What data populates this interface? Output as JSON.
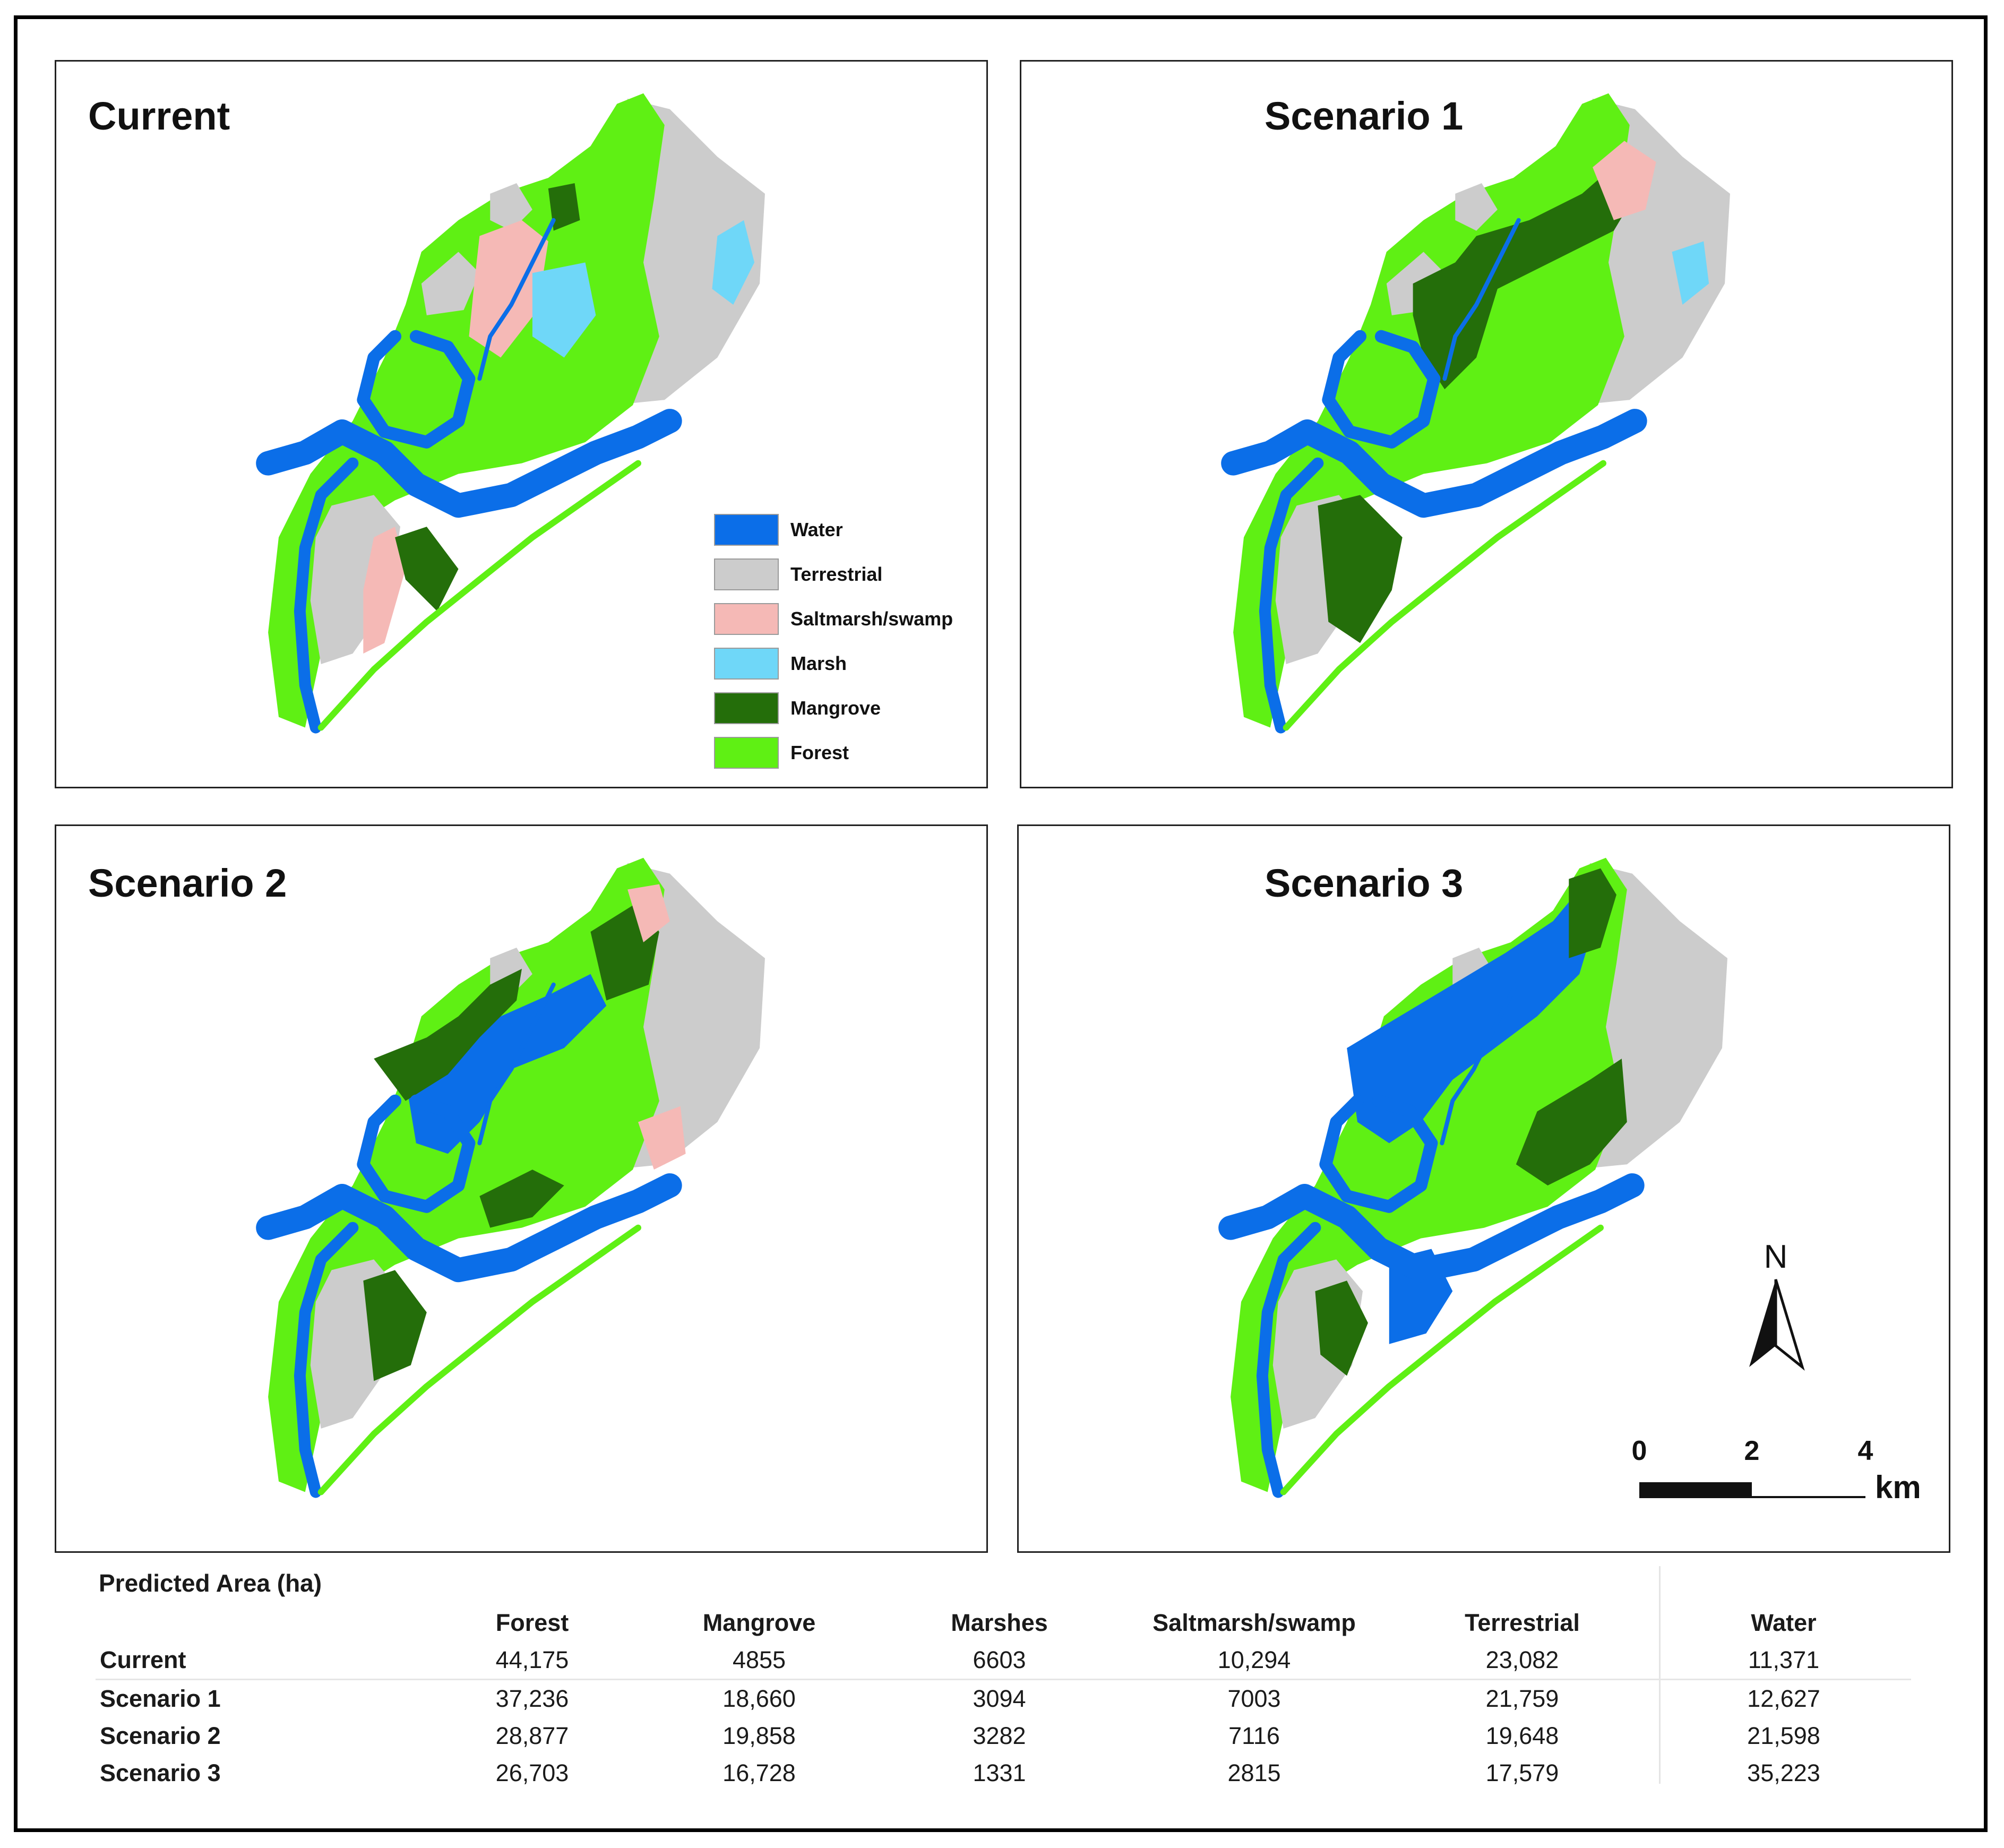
{
  "panels": [
    {
      "id": "current",
      "title": "Current",
      "scenario": 0
    },
    {
      "id": "scenario1",
      "title": "Scenario 1",
      "scenario": 1
    },
    {
      "id": "scenario2",
      "title": "Scenario 2",
      "scenario": 2
    },
    {
      "id": "scenario3",
      "title": "Scenario 3",
      "scenario": 3
    }
  ],
  "legend": {
    "items": [
      {
        "label": "Water",
        "color": "#0b6ee8"
      },
      {
        "label": "Terrestrial",
        "color": "#cccccc"
      },
      {
        "label": "Saltmarsh/swamp",
        "color": "#f5b9b6"
      },
      {
        "label": "Marsh",
        "color": "#6fd7f8"
      },
      {
        "label": "Mangrove",
        "color": "#246e0a"
      },
      {
        "label": "Forest",
        "color": "#5ff014"
      }
    ]
  },
  "north_arrow": {
    "label": "N"
  },
  "scale_bar": {
    "ticks": [
      "0",
      "2",
      "4"
    ],
    "unit": "km"
  },
  "table": {
    "title": "Predicted Area (ha)",
    "columns": [
      "Forest",
      "Mangrove",
      "Marshes",
      "Saltmarsh/swamp",
      "Terrestrial",
      "Water"
    ],
    "rows": [
      {
        "label": "Current",
        "values": [
          "44,175",
          "4855",
          "6603",
          "10,294",
          "23,082",
          "11,371"
        ]
      },
      {
        "label": "Scenario 1",
        "values": [
          "37,236",
          "18,660",
          "3094",
          "7003",
          "21,759",
          "12,627"
        ]
      },
      {
        "label": "Scenario 2",
        "values": [
          "28,877",
          "19,858",
          "3282",
          "7116",
          "19,648",
          "21,598"
        ]
      },
      {
        "label": "Scenario 3",
        "values": [
          "26,703",
          "16,728",
          "1331",
          "2815",
          "17,579",
          "35,223"
        ]
      }
    ]
  }
}
